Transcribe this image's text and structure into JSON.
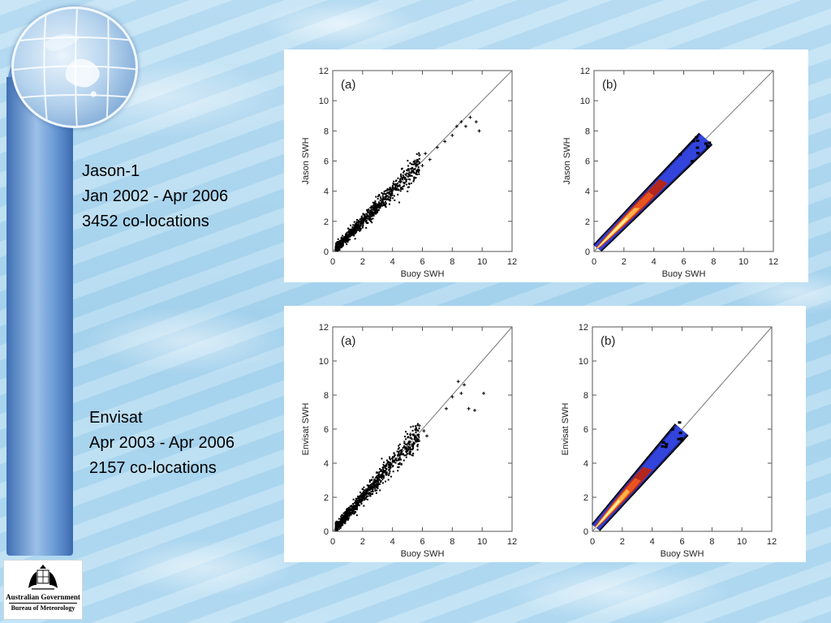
{
  "captions": {
    "jason": [
      "Jason-1",
      "Jan 2002 - Apr 2006",
      "3452 co-locations"
    ],
    "envisat": [
      "Envisat",
      "Apr 2003 - Apr 2006",
      "2157 co-locations"
    ]
  },
  "logo": {
    "line1": "Australian Government",
    "line2": "Bureau of Meteorology"
  },
  "chart_data": [
    {
      "type": "scatter",
      "panel_label": "(a)",
      "xlabel": "Buoy SWH",
      "ylabel": "Jason SWH",
      "xlim": [
        0,
        12
      ],
      "ylim": [
        0,
        12
      ],
      "xticks": [
        0,
        2,
        4,
        6,
        8,
        10,
        12
      ],
      "yticks": [
        0,
        2,
        4,
        6,
        8,
        10,
        12
      ],
      "reference_line": "1:1",
      "point_color": "#000000",
      "outliers": [
        [
          6.2,
          6.5
        ],
        [
          6.5,
          6.1
        ],
        [
          7.0,
          6.9
        ],
        [
          7.5,
          7.3
        ],
        [
          8.0,
          7.7
        ],
        [
          8.3,
          8.3
        ],
        [
          8.6,
          8.6
        ],
        [
          8.9,
          8.3
        ],
        [
          9.2,
          8.9
        ],
        [
          9.6,
          8.6
        ],
        [
          9.8,
          8.0
        ],
        [
          5.8,
          6.4
        ],
        [
          6.0,
          5.7
        ],
        [
          5.5,
          6.0
        ],
        [
          5.0,
          5.4
        ]
      ]
    },
    {
      "type": "heatmap",
      "panel_label": "(b)",
      "xlabel": "Buoy SWH",
      "ylabel": "Jason SWH",
      "xlim": [
        0,
        12
      ],
      "ylim": [
        0,
        12
      ],
      "xticks": [
        0,
        2,
        4,
        6,
        8,
        10,
        12
      ],
      "yticks": [
        0,
        2,
        4,
        6,
        8,
        10,
        12
      ],
      "reference_line": "1:1",
      "density_extent": [
        0.2,
        7.5
      ],
      "colors": [
        "#000000",
        "#1a237e",
        "#3344dd",
        "#b3261e",
        "#e8541e",
        "#ffb347",
        "#fff2a0"
      ]
    },
    {
      "type": "scatter",
      "panel_label": "(a)",
      "xlabel": "Buoy SWH",
      "ylabel": "Envisat SWH",
      "xlim": [
        0,
        12
      ],
      "ylim": [
        0,
        12
      ],
      "xticks": [
        0,
        2,
        4,
        6,
        8,
        10,
        12
      ],
      "yticks": [
        0,
        2,
        4,
        6,
        8,
        10,
        12
      ],
      "reference_line": "1:1",
      "point_color": "#000000",
      "outliers": [
        [
          6.1,
          5.9
        ],
        [
          5.8,
          6.2
        ],
        [
          5.5,
          5.6
        ],
        [
          7.6,
          7.2
        ],
        [
          8.0,
          7.9
        ],
        [
          8.4,
          8.8
        ],
        [
          8.6,
          8.1
        ],
        [
          8.8,
          8.6
        ],
        [
          9.1,
          7.2
        ],
        [
          9.5,
          7.1
        ],
        [
          10.1,
          8.1
        ],
        [
          5.2,
          5.7
        ],
        [
          6.3,
          5.6
        ]
      ]
    },
    {
      "type": "heatmap",
      "panel_label": "(b)",
      "xlabel": "Buoy SWH",
      "ylabel": "Envisat SWH",
      "xlim": [
        0,
        12
      ],
      "ylim": [
        0,
        12
      ],
      "xticks": [
        0,
        2,
        4,
        6,
        8,
        10,
        12
      ],
      "yticks": [
        0,
        2,
        4,
        6,
        8,
        10,
        12
      ],
      "reference_line": "1:1",
      "density_extent": [
        0.2,
        6.0
      ],
      "colors": [
        "#000000",
        "#1a237e",
        "#3344dd",
        "#b3261e",
        "#e8541e",
        "#ffb347",
        "#fff2a0"
      ]
    }
  ]
}
